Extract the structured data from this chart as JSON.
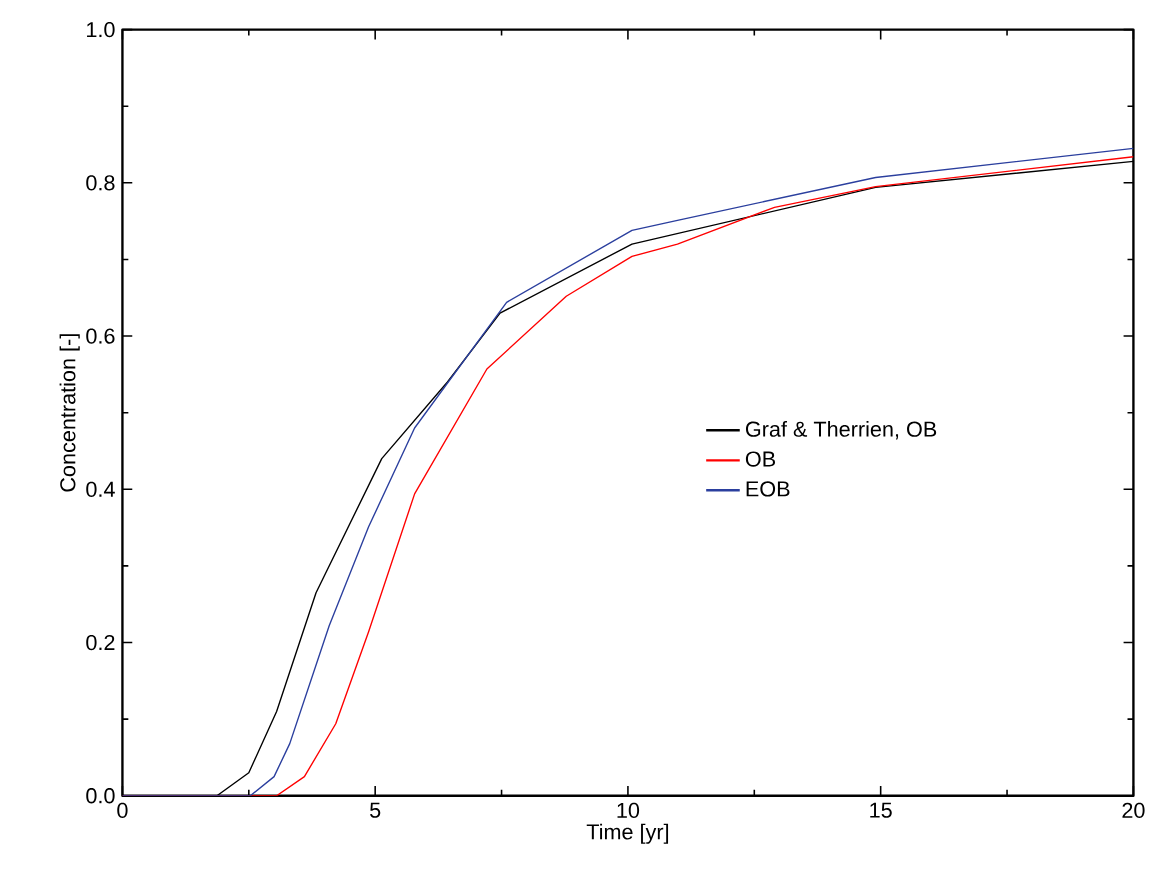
{
  "chart_data": {
    "type": "line",
    "xlabel": "Time [yr]",
    "ylabel": "Concentration [-]",
    "xlim": [
      0,
      20
    ],
    "ylim": [
      0,
      1.0
    ],
    "xticks": [
      0,
      5,
      10,
      15,
      20
    ],
    "yticks": [
      {
        "value": 0,
        "label": "0.0"
      },
      {
        "value": 0.2,
        "label": "0.2"
      },
      {
        "value": 0.4,
        "label": "0.4"
      },
      {
        "value": 0.6,
        "label": "0.6"
      },
      {
        "value": 0.8,
        "label": "0.8"
      },
      {
        "value": 1.0,
        "label": "1.0"
      }
    ],
    "grid": false,
    "legend": "right",
    "marker": "none",
    "line_style": "solid",
    "series": [
      {
        "name": "Graf & Therrien, OB",
        "color": "#000000",
        "x": [
          0,
          1.87,
          2.5,
          3.05,
          3.83,
          5.13,
          6.43,
          7.47,
          10.08,
          14.9,
          20
        ],
        "values": [
          0,
          0,
          0.03,
          0.11,
          0.265,
          0.44,
          0.54,
          0.63,
          0.72,
          0.794,
          0.828
        ]
      },
      {
        "name": "OB",
        "color": "#ff0000",
        "x": [
          0,
          3.05,
          3.6,
          4.22,
          4.87,
          5.78,
          7.21,
          8.78,
          10.08,
          10.98,
          12.9,
          14.9,
          20
        ],
        "values": [
          0,
          0,
          0.025,
          0.094,
          0.214,
          0.394,
          0.557,
          0.652,
          0.704,
          0.72,
          0.768,
          0.795,
          0.834
        ]
      },
      {
        "name": "EOB",
        "color": "#2b3f9e",
        "x": [
          0,
          2.53,
          3.0,
          3.31,
          4.09,
          4.87,
          5.78,
          7.6,
          10.08,
          10.98,
          14.9,
          20
        ],
        "values": [
          0,
          0,
          0.025,
          0.068,
          0.222,
          0.351,
          0.48,
          0.644,
          0.738,
          0.751,
          0.807,
          0.845
        ]
      }
    ]
  }
}
